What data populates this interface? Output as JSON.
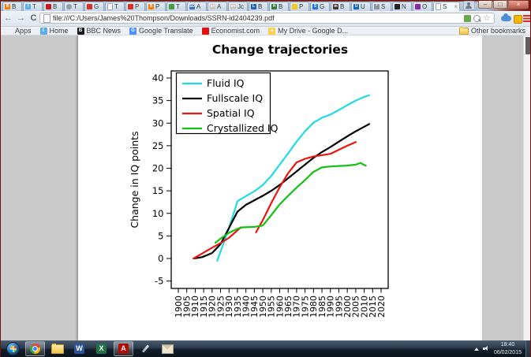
{
  "browser": {
    "tabs": [
      {
        "label": "B",
        "icon": "blogger-icon",
        "color": "#f57c00",
        "glyph": "B"
      },
      {
        "label": "T",
        "icon": "twitter-icon",
        "color": "#59adeb",
        "glyph": "t"
      },
      {
        "label": "B",
        "icon": "youtube-icon",
        "color": "#cc181e",
        "glyph": ""
      },
      {
        "label": "T",
        "icon": "target-icon",
        "color": "#90a0aa",
        "glyph": ""
      },
      {
        "label": "G",
        "icon": "red-square-icon",
        "color": "#d93025",
        "glyph": ""
      },
      {
        "label": "T",
        "icon": "document-icon",
        "color": "#ffffff",
        "glyph": ""
      },
      {
        "label": "P",
        "icon": "red-square-icon",
        "color": "#d93025",
        "glyph": ""
      },
      {
        "label": "P",
        "icon": "blogger-icon",
        "color": "#f57c00",
        "glyph": "B"
      },
      {
        "label": "T",
        "icon": "green-swirl-icon",
        "color": "#43a047",
        "glyph": ""
      },
      {
        "label": "A",
        "icon": "sd-icon",
        "color": "#3f6fb5",
        "glyph": "SD"
      },
      {
        "label": "A",
        "icon": "xx-icon",
        "color": "#cfc4bc",
        "glyph": "xx"
      },
      {
        "label": "Jc",
        "icon": "xx-icon",
        "color": "#cfc4bc",
        "glyph": "xx"
      },
      {
        "label": "B",
        "icon": "l-icon",
        "color": "#1e63c4",
        "glyph": "L"
      },
      {
        "label": "B",
        "icon": "h-icon",
        "color": "#2e7d32",
        "glyph": "H"
      },
      {
        "label": "P",
        "icon": "dash-icon",
        "color": "#f5c518",
        "glyph": "-"
      },
      {
        "label": "G",
        "icon": "s-icon",
        "color": "#1a73e8",
        "glyph": "S"
      },
      {
        "label": "B",
        "icon": "m-icon",
        "color": "#4e342e",
        "glyph": "m"
      },
      {
        "label": "U",
        "icon": "u-icon",
        "color": "#1565c0",
        "glyph": "U"
      },
      {
        "label": "S",
        "icon": "gear-icon",
        "color": "#8a959e",
        "glyph": "*"
      },
      {
        "label": "N",
        "icon": "checkered-icon",
        "color": "#212121",
        "glyph": ""
      },
      {
        "label": "O",
        "icon": "purple-icon",
        "color": "#8e24aa",
        "glyph": ""
      }
    ],
    "active_tab": {
      "label": "S",
      "icon": "pdf-doc-icon",
      "close_glyph": "×"
    },
    "window_controls": {
      "minimize": "–",
      "restore": "□",
      "close": "×"
    },
    "toolbar": {
      "back_glyph": "←",
      "forward_glyph": "→",
      "reload_glyph": "C",
      "url": "file:///C:/Users/James%20Thompson/Downloads/SSRN-id2404239.pdf",
      "star_glyph": "☆"
    },
    "bookmarks_bar": {
      "items": [
        {
          "label": "Apps",
          "icon": "apps-grid-icon",
          "color": "#7d8792",
          "glyph": ""
        },
        {
          "label": "Home",
          "icon": "twitter-bird-icon",
          "color": "#59adeb",
          "glyph": "t"
        },
        {
          "label": "BBC News",
          "icon": "bbc-icon",
          "color": "#1a1a1a",
          "glyph": "B"
        },
        {
          "label": "Google Translate",
          "icon": "google-translate-icon",
          "color": "#4d90fe",
          "glyph": "G"
        },
        {
          "label": "Economist.com",
          "icon": "economist-icon",
          "color": "#e3120b",
          "glyph": ""
        },
        {
          "label": "My Drive - Google D...",
          "icon": "google-drive-icon",
          "color": "#ffd04b",
          "glyph": "▲"
        }
      ],
      "other_bookmarks_label": "Other bookmarks"
    }
  },
  "taskbar": {
    "items": [
      {
        "name": "start-button",
        "type": "start",
        "active": false,
        "glyph": "",
        "color": ""
      },
      {
        "name": "chrome-taskbar-icon",
        "type": "chrome",
        "active": true,
        "glyph": "",
        "color": ""
      },
      {
        "name": "explorer-taskbar-icon",
        "type": "folder",
        "active": false,
        "glyph": "",
        "color": ""
      },
      {
        "name": "word-taskbar-icon",
        "type": "letter",
        "active": false,
        "glyph": "W",
        "color": "#2b579a"
      },
      {
        "name": "excel-taskbar-icon",
        "type": "letter",
        "active": false,
        "glyph": "X",
        "color": "#217346"
      },
      {
        "name": "adobe-reader-taskbar-icon",
        "type": "letter",
        "active": true,
        "glyph": "A",
        "color": "#b30b00"
      },
      {
        "name": "pen-app-taskbar-icon",
        "type": "pen",
        "active": false,
        "glyph": "",
        "color": ""
      },
      {
        "name": "mail-app-taskbar-icon",
        "type": "mail",
        "active": false,
        "glyph": "",
        "color": ""
      }
    ],
    "tray": {
      "time": "18:40",
      "date": "06/02/2015"
    }
  },
  "chart_data": {
    "type": "line",
    "title": "Change trajectories",
    "xlabel": "",
    "ylabel": "Change in IQ points",
    "x_ticks": [
      1900,
      1905,
      1910,
      1915,
      1920,
      1925,
      1930,
      1935,
      1940,
      1945,
      1950,
      1955,
      1960,
      1965,
      1970,
      1975,
      1980,
      1985,
      1990,
      1995,
      2000,
      2005,
      2010,
      2015,
      2020
    ],
    "y_ticks": [
      -5,
      0,
      5,
      10,
      15,
      20,
      25,
      30,
      35,
      40
    ],
    "xlim": [
      1896.7,
      2024.2
    ],
    "ylim": [
      -6.5,
      41.9
    ],
    "grid": false,
    "legend_position": "top-left",
    "series": [
      {
        "name": "Fluid IQ",
        "color": "#1fdbe8",
        "segments": [
          [
            [
              1923,
              -0.5
            ],
            [
              1925,
              1.5
            ],
            [
              1930,
              6.8
            ],
            [
              1935,
              12.7
            ],
            [
              1938,
              13.4
            ],
            [
              1945,
              14.9
            ],
            [
              1950,
              16.3
            ],
            [
              1955,
              18.3
            ],
            [
              1960,
              20.8
            ],
            [
              1965,
              23.3
            ],
            [
              1970,
              25.9
            ],
            [
              1975,
              28.2
            ],
            [
              1980,
              30.1
            ],
            [
              1985,
              31.2
            ],
            [
              1990,
              31.9
            ],
            [
              1995,
              32.9
            ],
            [
              2000,
              34.0
            ],
            [
              2005,
              35.0
            ],
            [
              2010,
              35.8
            ],
            [
              2013,
              36.2
            ]
          ]
        ]
      },
      {
        "name": "Fullscale IQ",
        "color": "#000000",
        "segments": [
          [
            [
              1909,
              0
            ],
            [
              1914,
              0.3
            ],
            [
              1920,
              1.2
            ],
            [
              1925,
              3.2
            ],
            [
              1930,
              6.8
            ],
            [
              1935,
              10.4
            ],
            [
              1940,
              11.9
            ],
            [
              1945,
              12.9
            ],
            [
              1950,
              13.9
            ],
            [
              1955,
              15.0
            ],
            [
              1960,
              16.3
            ],
            [
              1965,
              17.8
            ],
            [
              1970,
              19.3
            ],
            [
              1975,
              20.8
            ],
            [
              1980,
              22.3
            ],
            [
              1985,
              23.6
            ],
            [
              1990,
              24.7
            ],
            [
              1995,
              25.9
            ],
            [
              2000,
              27.1
            ],
            [
              2005,
              28.2
            ],
            [
              2010,
              29.2
            ],
            [
              2013,
              29.8
            ]
          ]
        ]
      },
      {
        "name": "Spatial IQ",
        "color": "#e9150d",
        "segments": [
          [
            [
              1909,
              0
            ],
            [
              1915,
              1.3
            ],
            [
              1920,
              2.4
            ],
            [
              1925,
              3.4
            ],
            [
              1930,
              4.6
            ],
            [
              1937,
              6.9
            ]
          ],
          [
            [
              1946,
              5.8
            ],
            [
              1950,
              8.5
            ],
            [
              1955,
              12.3
            ],
            [
              1960,
              15.8
            ],
            [
              1965,
              18.9
            ],
            [
              1970,
              21.3
            ],
            [
              1975,
              22.1
            ],
            [
              1980,
              22.6
            ],
            [
              1985,
              22.9
            ],
            [
              1990,
              23.2
            ],
            [
              1995,
              24.1
            ],
            [
              2000,
              25.0
            ],
            [
              2005,
              25.8
            ]
          ]
        ]
      },
      {
        "name": "Crystallized IQ",
        "color": "#15c115",
        "segments": [
          [
            [
              1922,
              3.5
            ],
            [
              1925,
              4.4
            ],
            [
              1930,
              5.7
            ],
            [
              1935,
              6.6
            ],
            [
              1938,
              6.9
            ],
            [
              1945,
              7.0
            ],
            [
              1950,
              7.3
            ],
            [
              1955,
              9.6
            ],
            [
              1960,
              12.0
            ],
            [
              1965,
              13.9
            ],
            [
              1970,
              15.7
            ],
            [
              1975,
              17.4
            ],
            [
              1980,
              19.2
            ],
            [
              1985,
              20.2
            ],
            [
              1990,
              20.4
            ],
            [
              1995,
              20.5
            ],
            [
              2000,
              20.6
            ],
            [
              2005,
              20.8
            ],
            [
              2008,
              21.2
            ],
            [
              2009,
              20.9
            ],
            [
              2011,
              20.6
            ]
          ]
        ]
      }
    ]
  }
}
